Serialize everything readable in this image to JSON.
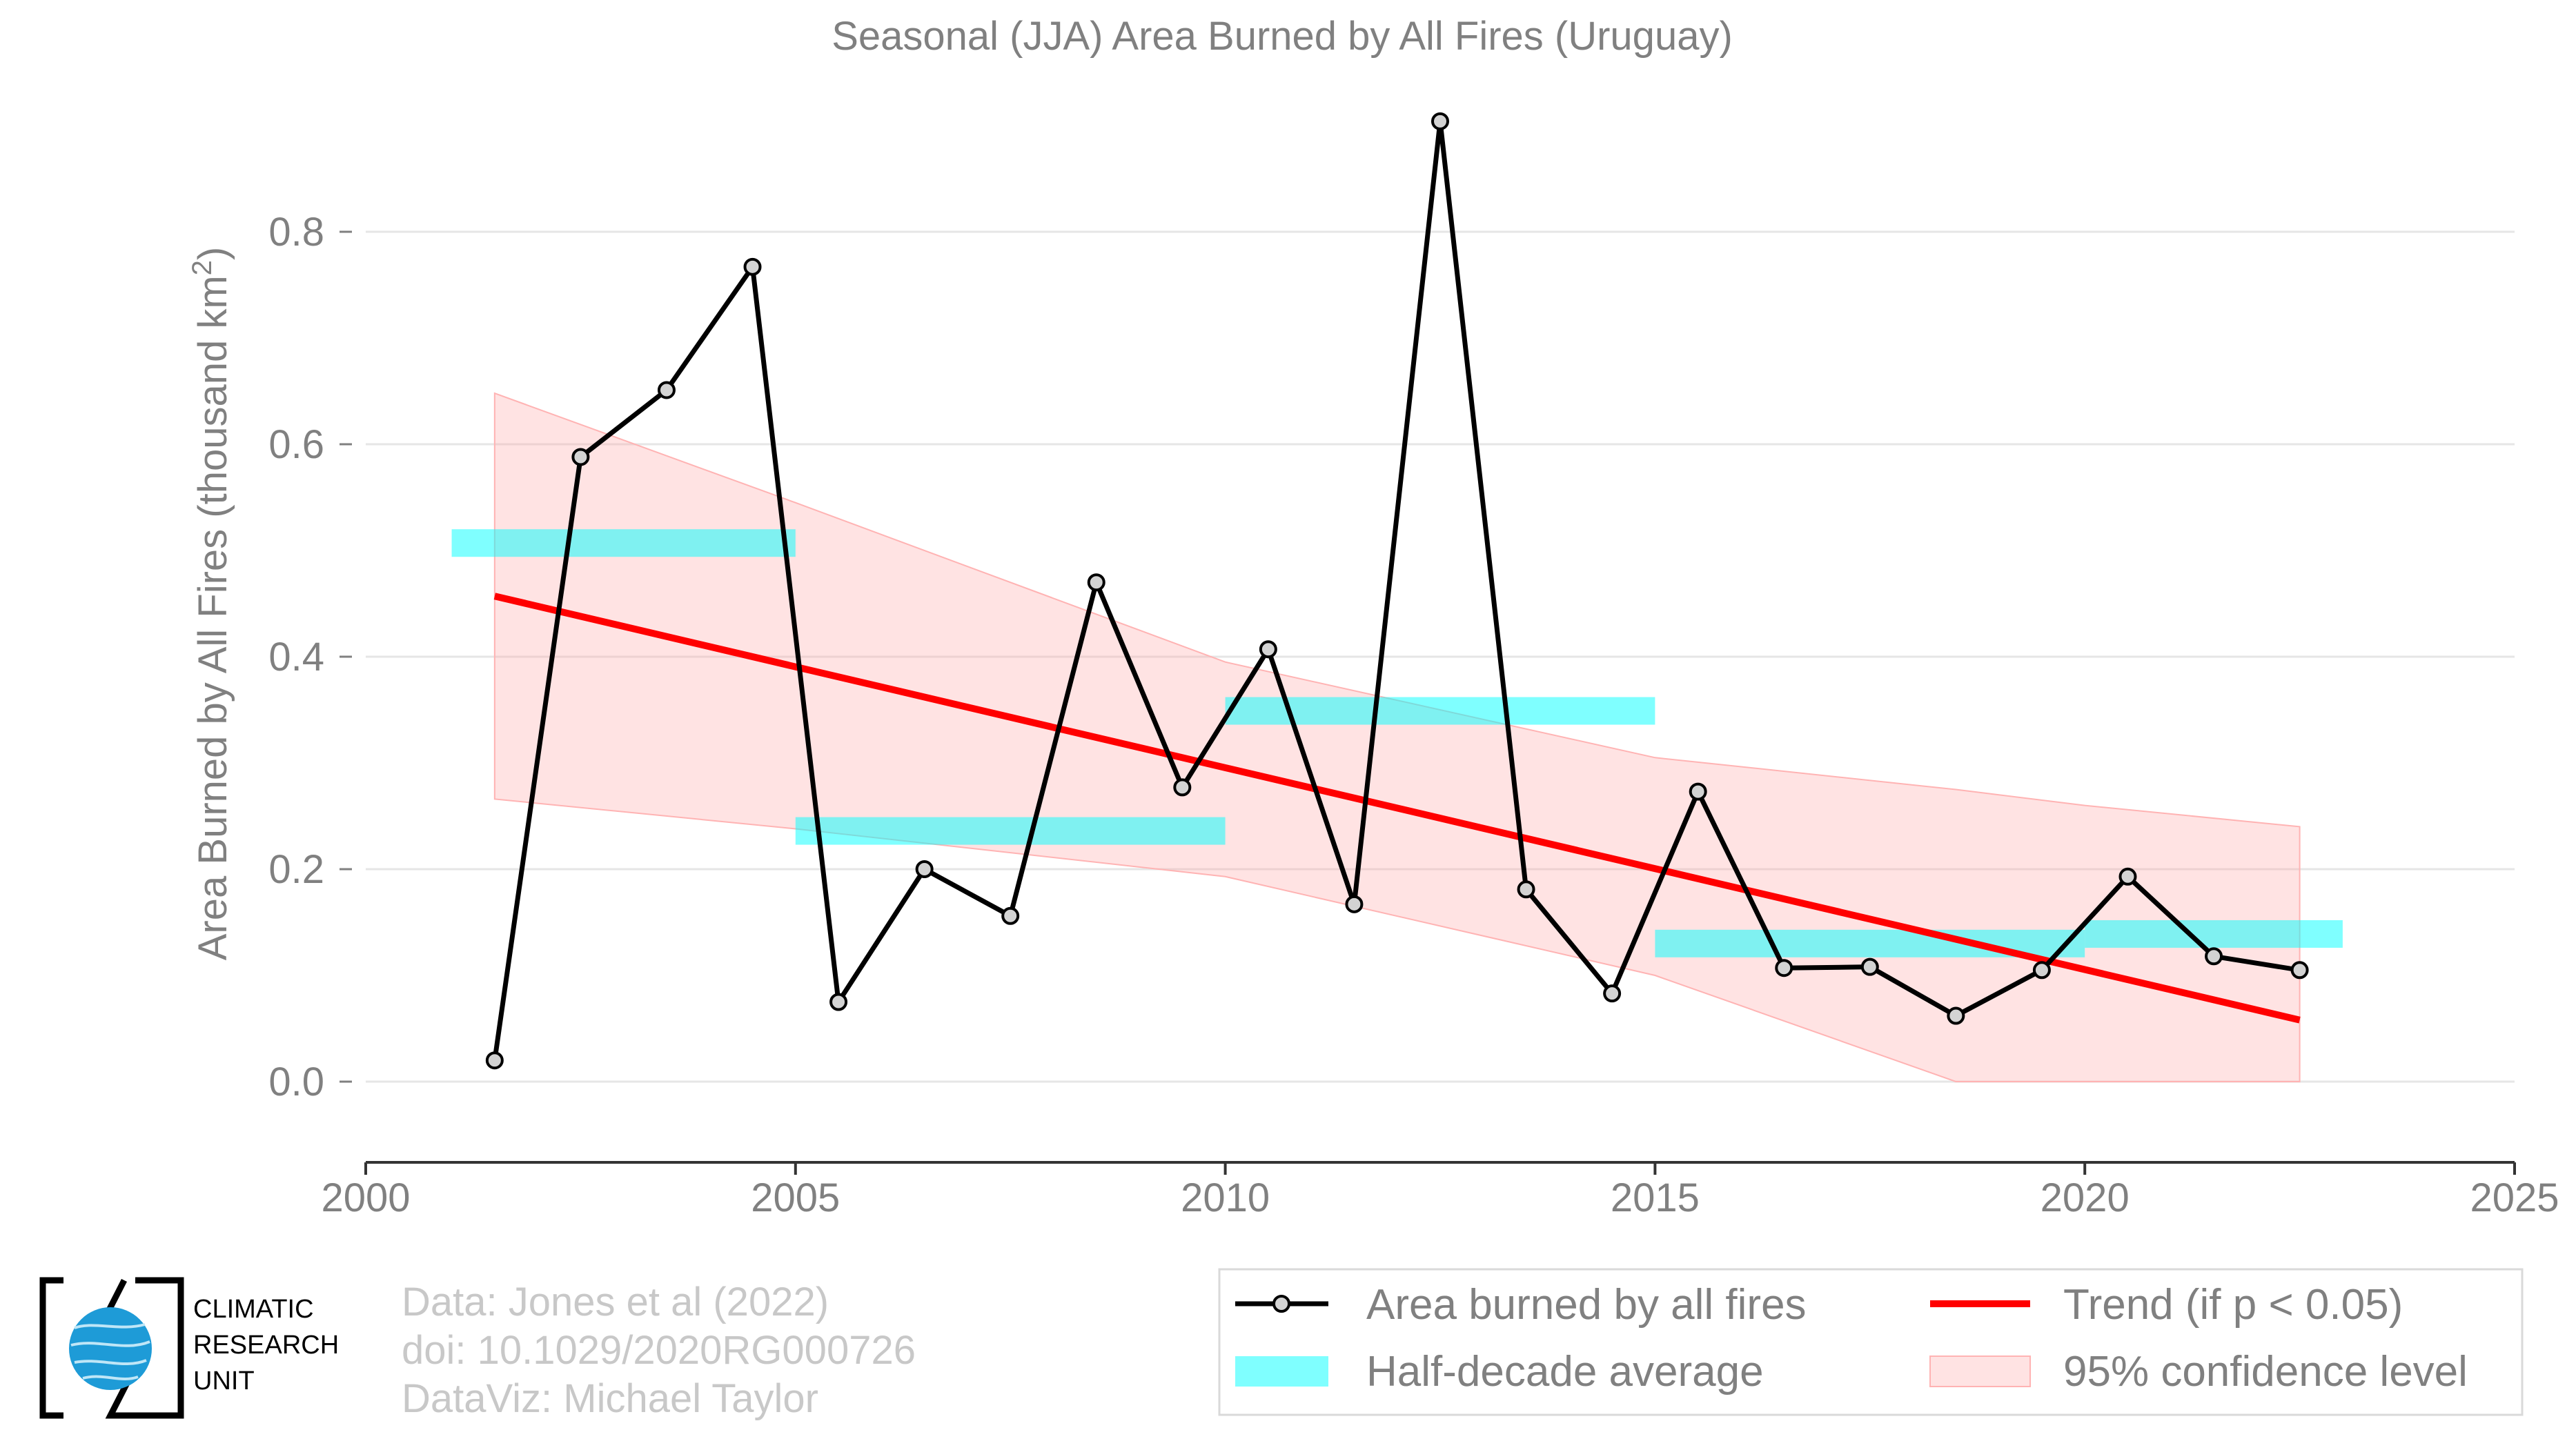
{
  "chart_data": {
    "type": "line",
    "title": "Seasonal (JJA) Area Burned by All Fires (Uruguay)",
    "ylabel_main": "Area Burned by All Fires (thousand km",
    "ylabel_sup": "2",
    "ylabel_end": ")",
    "xlabel": "",
    "xlim": [
      2000,
      2025
    ],
    "ylim": [
      0,
      0.9
    ],
    "x_ticks": [
      2000,
      2005,
      2010,
      2015,
      2020,
      2025
    ],
    "y_ticks": [
      0.0,
      0.2,
      0.4,
      0.6,
      0.8
    ],
    "y_tick_labels": [
      "0.0",
      "0.2",
      "0.4",
      "0.6",
      "0.8"
    ],
    "grid": "horizontal",
    "series": [
      {
        "name": "Area burned by all fires",
        "color": "#000000",
        "marker_fill": "#d3d3d3",
        "x": [
          2001.5,
          2002.5,
          2003.5,
          2004.5,
          2005.5,
          2006.5,
          2007.5,
          2008.5,
          2009.5,
          2010.5,
          2011.5,
          2012.5,
          2013.5,
          2014.5,
          2015.5,
          2016.5,
          2017.5,
          2018.5,
          2019.5,
          2020.5,
          2021.5,
          2022.5
        ],
        "y": [
          0.02,
          0.588,
          0.651,
          0.767,
          0.075,
          0.2,
          0.156,
          0.47,
          0.277,
          0.407,
          0.167,
          0.904,
          0.181,
          0.083,
          0.273,
          0.107,
          0.108,
          0.062,
          0.105,
          0.193,
          0.118,
          0.105
        ]
      }
    ],
    "half_decade_average": {
      "name": "Half-decade average",
      "color": "#00ffff",
      "segments": [
        {
          "x0": 2001,
          "x1": 2005,
          "y": 0.507
        },
        {
          "x0": 2005,
          "x1": 2010,
          "y": 0.236
        },
        {
          "x0": 2010,
          "x1": 2015,
          "y": 0.349
        },
        {
          "x0": 2015,
          "x1": 2020,
          "y": 0.13
        },
        {
          "x0": 2020,
          "x1": 2023,
          "y": 0.139
        }
      ]
    },
    "trend": {
      "name": "Trend (if p < 0.05)",
      "color": "#ff0000",
      "x0": 2001.5,
      "y0": 0.457,
      "x1": 2022.5,
      "y1": 0.058
    },
    "confidence_band": {
      "name": "95% confidence level",
      "color": "#ff9999",
      "x": [
        2001.5,
        2005,
        2010,
        2015,
        2018.5,
        2020,
        2022.5
      ],
      "upper": [
        0.648,
        0.545,
        0.395,
        0.305,
        0.275,
        0.26,
        0.24
      ],
      "lower": [
        0.266,
        0.238,
        0.193,
        0.1,
        0.0,
        0.0,
        0.0
      ]
    }
  },
  "credits": {
    "line1": "Data: Jones et al (2022)",
    "line2": "doi: 10.1029/2020RG000726",
    "line3": "DataViz: Michael Taylor"
  },
  "logo": {
    "line1": "CLIMATIC",
    "line2": "RESEARCH",
    "line3": "UNIT",
    "globe_color": "#1e9bd7"
  }
}
